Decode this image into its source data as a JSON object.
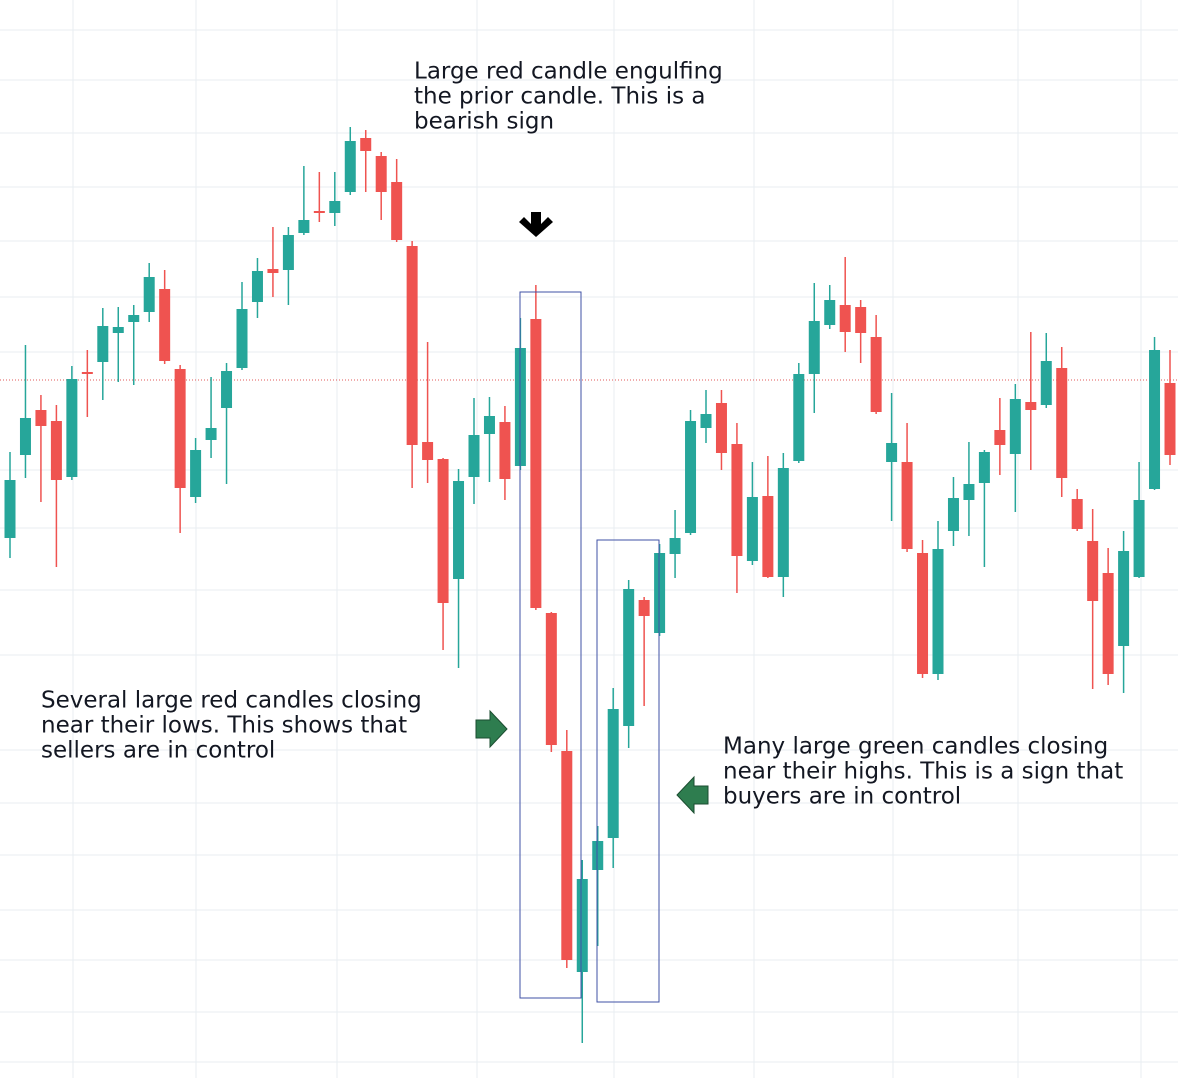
{
  "chart_data": {
    "type": "candlestick",
    "up_color": "#26a69a",
    "down_color": "#ef5350",
    "grid": true,
    "ylim": [
      0,
      1078
    ],
    "reference_line": 698,
    "reference_color": "#e05a5a",
    "open": [
      540,
      623,
      668,
      657,
      601,
      706,
      716,
      745,
      756,
      766,
      789,
      709,
      581,
      638,
      670,
      710,
      776,
      809,
      808,
      845,
      867,
      865,
      886,
      940,
      922,
      896,
      832,
      636,
      619,
      499,
      601,
      644,
      656,
      612,
      759,
      465,
      327,
      106,
      208,
      240,
      352,
      478,
      445,
      524,
      545,
      650,
      675,
      634,
      517,
      582,
      501,
      617,
      704,
      753,
      773,
      771,
      741,
      616,
      616,
      525,
      404,
      547,
      578,
      595,
      648,
      624,
      676,
      673,
      710,
      579,
      537,
      505,
      432,
      501,
      589,
      695
    ],
    "high": [
      626,
      733,
      683,
      673,
      712,
      728,
      770,
      771,
      773,
      815,
      808,
      713,
      640,
      701,
      715,
      796,
      820,
      851,
      851,
      912,
      906,
      906,
      951,
      948,
      926,
      919,
      837,
      736,
      620,
      609,
      680,
      681,
      672,
      760,
      793,
      466,
      348,
      218,
      252,
      390,
      498,
      481,
      534,
      568,
      668,
      688,
      688,
      655,
      616,
      622,
      625,
      715,
      795,
      793,
      821,
      778,
      763,
      685,
      655,
      538,
      557,
      601,
      636,
      628,
      680,
      694,
      746,
      745,
      731,
      589,
      569,
      530,
      547,
      616,
      741,
      728
    ],
    "low": [
      520,
      600,
      576,
      511,
      598,
      661,
      678,
      696,
      693,
      756,
      714,
      545,
      575,
      620,
      594,
      708,
      760,
      781,
      773,
      843,
      856,
      852,
      883,
      886,
      858,
      836,
      590,
      595,
      428,
      410,
      574,
      596,
      578,
      608,
      468,
      326,
      110,
      35,
      132,
      210,
      330,
      372,
      442,
      500,
      543,
      635,
      608,
      485,
      513,
      500,
      481,
      615,
      665,
      749,
      726,
      715,
      664,
      557,
      526,
      400,
      398,
      532,
      542,
      511,
      603,
      566,
      608,
      670,
      581,
      547,
      389,
      393,
      385,
      500,
      588,
      613
    ],
    "close": [
      598,
      660,
      652,
      598,
      699,
      704,
      752,
      751,
      763,
      801,
      717,
      590,
      628,
      650,
      707,
      769,
      807,
      805,
      843,
      858,
      865,
      877,
      937,
      927,
      886,
      838,
      633,
      618,
      475,
      597,
      643,
      662,
      599,
      730,
      470,
      333,
      118,
      199,
      237,
      369,
      489,
      462,
      525,
      540,
      657,
      664,
      625,
      522,
      581,
      501,
      610,
      704,
      757,
      778,
      746,
      745,
      666,
      635,
      529,
      404,
      529,
      580,
      594,
      626,
      633,
      679,
      668,
      717,
      600,
      549,
      477,
      404,
      527,
      578,
      728,
      623
    ],
    "annotations": [
      [
        "Large red candle engulfing",
        "the prior candle. This is a",
        "bearish sign"
      ],
      [
        "Several large red candles closing",
        "near their lows. This shows that",
        "sellers are in control"
      ],
      [
        "Many large green candles closing",
        "near their highs. This is a sign that",
        "buyers are in control"
      ]
    ]
  }
}
